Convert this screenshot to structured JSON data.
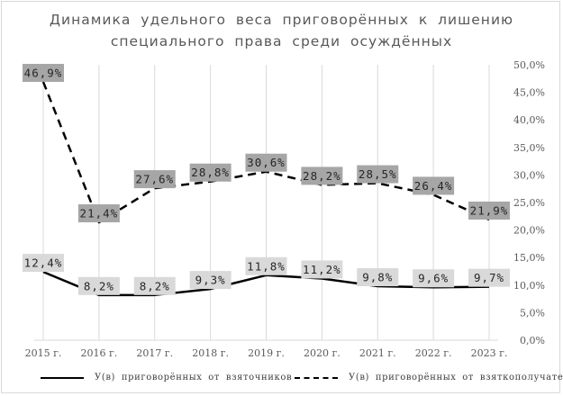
{
  "chart_data": {
    "type": "line",
    "title": "Динамика удельного веса приговорённых к лишению специального права среди осуждённых",
    "categories": [
      "2015 г.",
      "2016 г.",
      "2017 г.",
      "2018 г.",
      "2019 г.",
      "2020 г.",
      "2021 г.",
      "2022 г.",
      "2023 г."
    ],
    "yticks": [
      "0,0%",
      "5,0%",
      "10,0%",
      "15,0%",
      "20,0%",
      "25,0%",
      "30,0%",
      "35,0%",
      "40,0%",
      "45,0%",
      "50,0%"
    ],
    "ylim": [
      0,
      50
    ],
    "grid": "vertical",
    "legend_position": "bottom",
    "series": [
      {
        "name": "У(в) приговорённых от взяточников",
        "line_style": "solid",
        "color": "#000000",
        "values": [
          12.4,
          8.2,
          8.2,
          9.3,
          11.8,
          11.2,
          9.8,
          9.6,
          9.7
        ],
        "labels": [
          "12,4%",
          "8,2%",
          "8,2%",
          "9,3%",
          "11,8%",
          "11,2%",
          "9,8%",
          "9,6%",
          "9,7%"
        ]
      },
      {
        "name": "У(в) приговорённых от взяткополучателей",
        "line_style": "dashed",
        "color": "#000000",
        "values": [
          46.9,
          21.4,
          27.6,
          28.8,
          30.6,
          28.2,
          28.5,
          26.4,
          21.9
        ],
        "labels": [
          "46,9%",
          "21,4%",
          "27,6%",
          "28,8%",
          "30,6%",
          "28,2%",
          "28,5%",
          "26,4%",
          "21,9%"
        ]
      }
    ],
    "label_box_colors": [
      "#d9d9d9",
      "#a6a6a6"
    ]
  }
}
